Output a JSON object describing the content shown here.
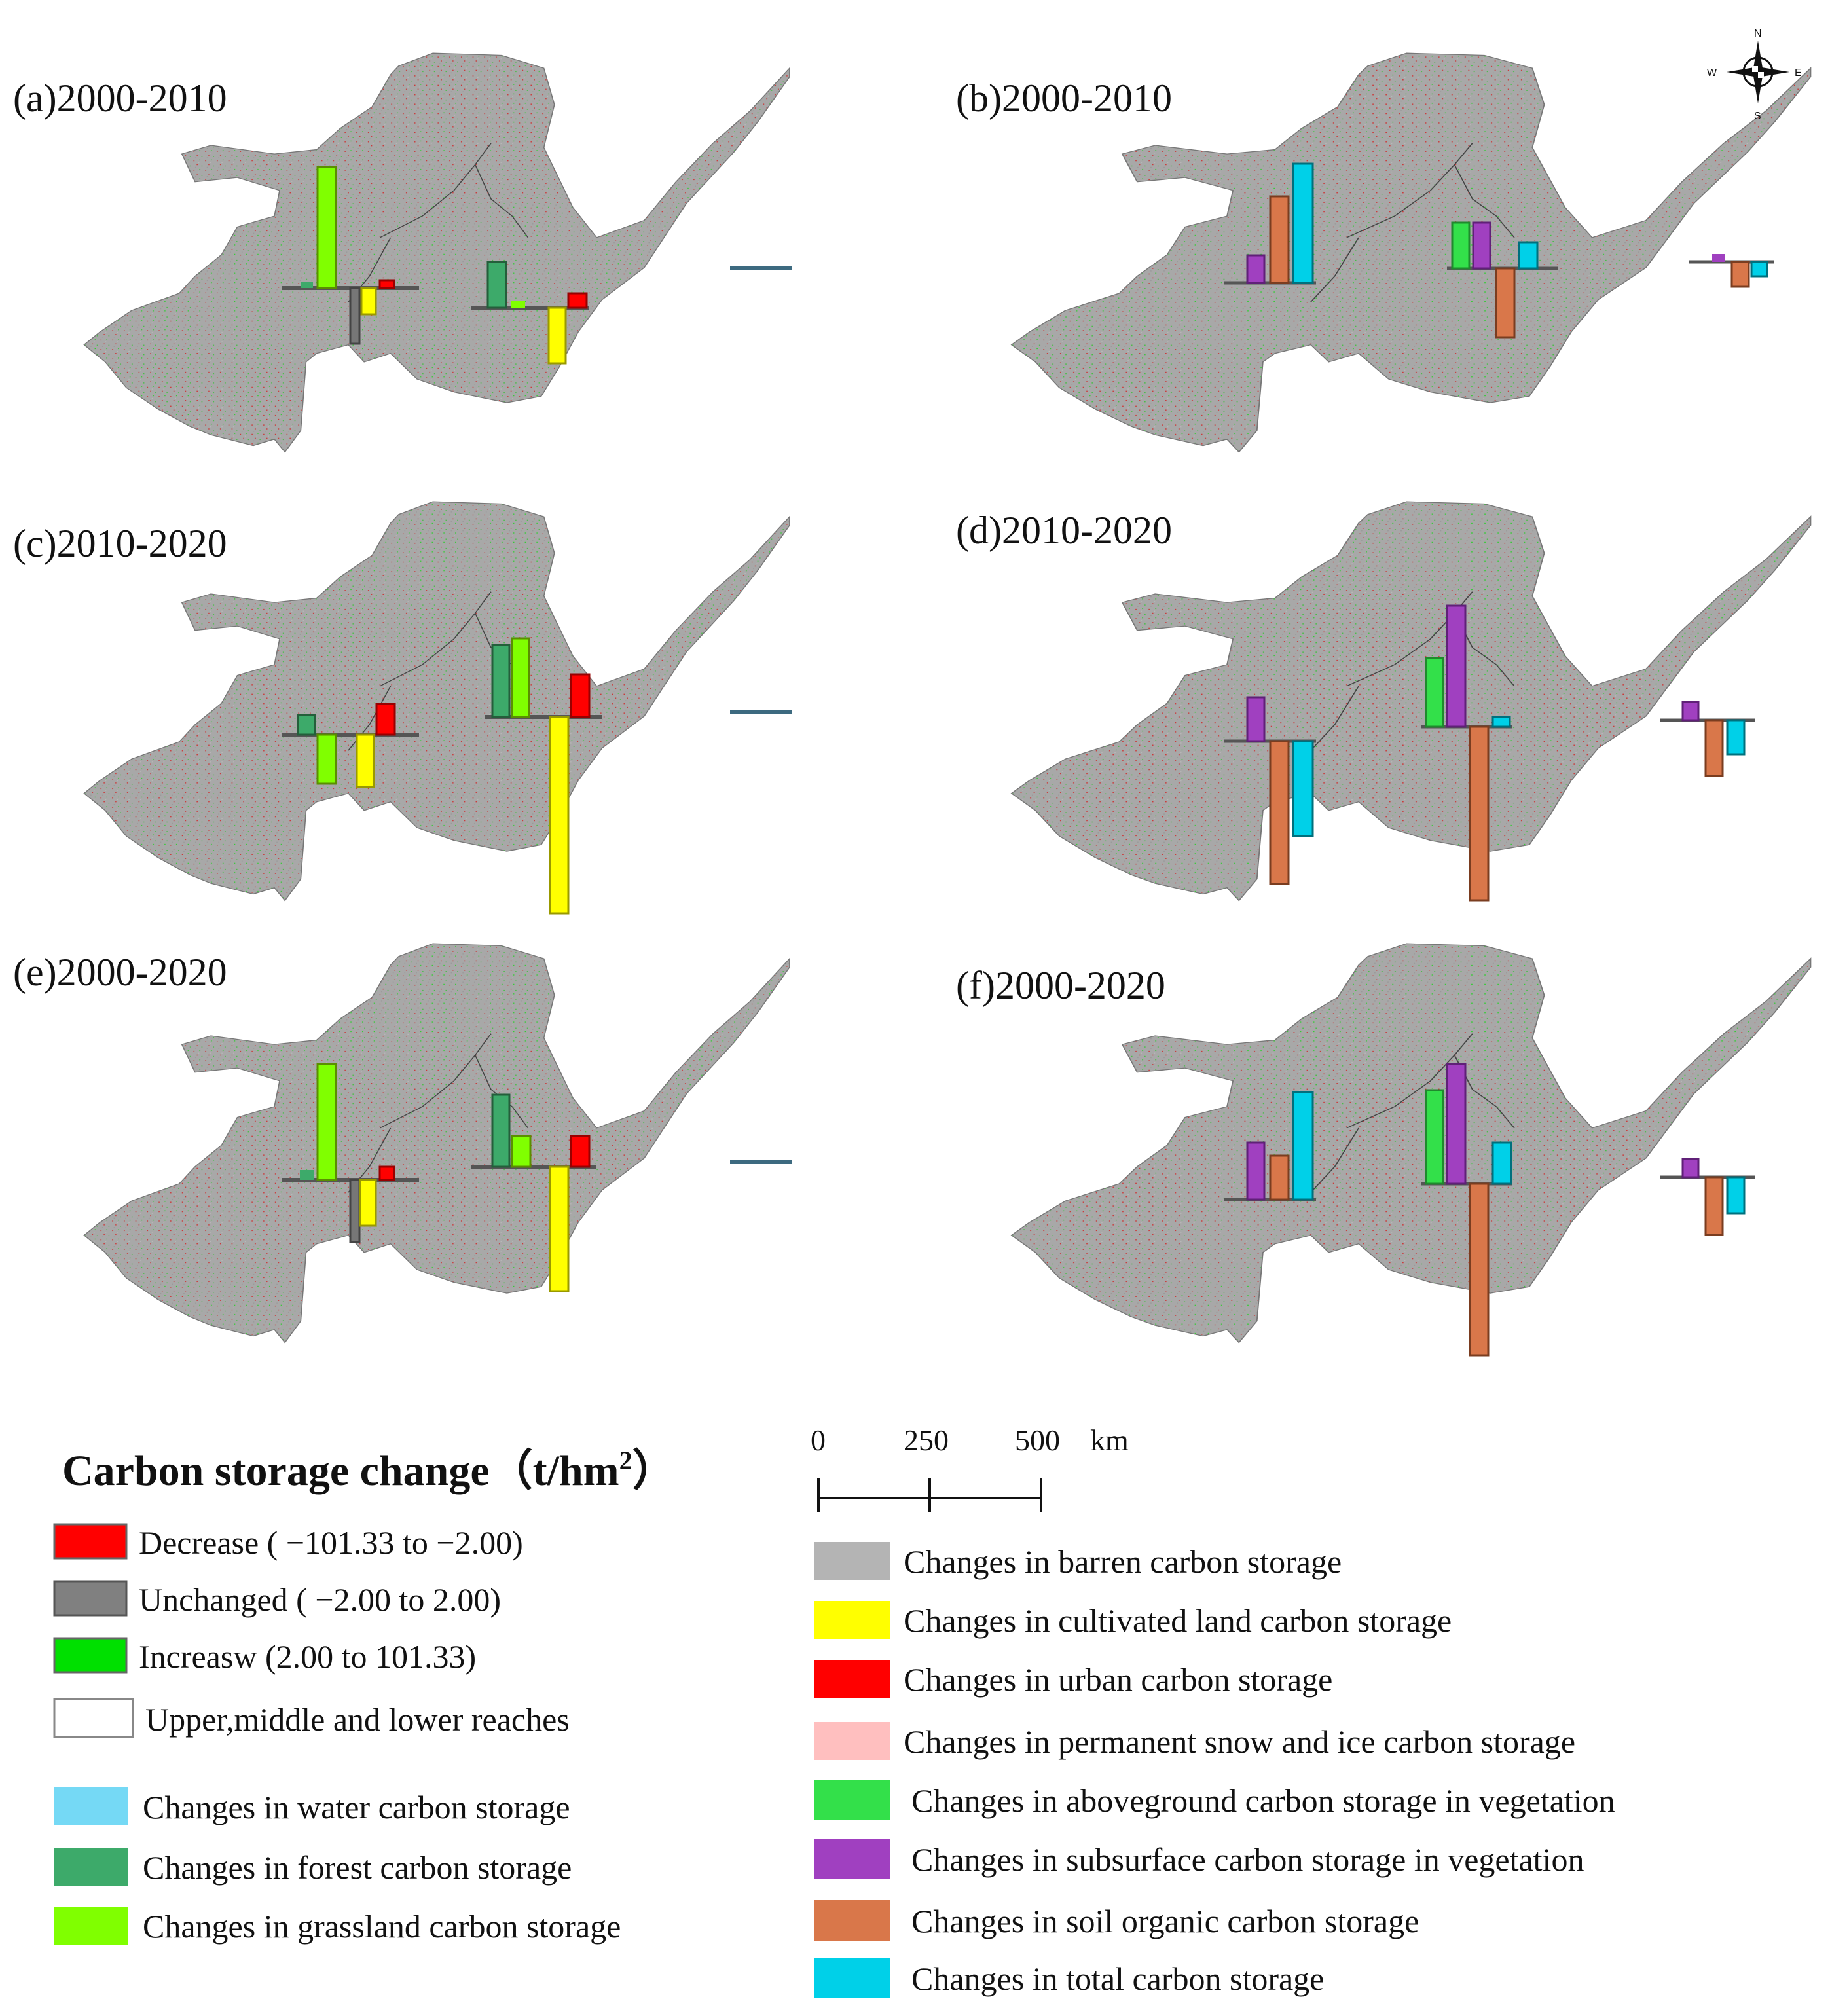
{
  "panels": [
    {
      "id": "a",
      "title": "(a)2000-2010"
    },
    {
      "id": "b",
      "title": "(b)2000-2010"
    },
    {
      "id": "c",
      "title": "(c)2010-2020"
    },
    {
      "id": "d",
      "title": "(d)2010-2020"
    },
    {
      "id": "e",
      "title": "(e)2000-2020"
    },
    {
      "id": "f",
      "title": "(f)2000-2020"
    }
  ],
  "compass": {
    "n": "N",
    "s": "S",
    "e": "E",
    "w": "W"
  },
  "legend": {
    "title": "Carbon storage change",
    "title_unit": "（t/hm",
    "title_sup": "2",
    "title_close": "）",
    "classes": [
      {
        "label": "Decrease ( −101.33 to −2.00)",
        "color": "#ff0000"
      },
      {
        "label": "Unchanged ( −2.00 to 2.00)",
        "color": "#808080"
      },
      {
        "label": "Increasw (2.00 to 101.33)",
        "color": "#00e000"
      },
      {
        "label": "Upper,middle and lower reaches",
        "color": "#ffffff"
      }
    ],
    "bars_left": [
      {
        "label": "Changes in water carbon storage",
        "color": "#75d9f5"
      },
      {
        "label": "Changes in forest carbon storage",
        "color": "#3daa6a"
      },
      {
        "label": "Changes in grassland carbon storage",
        "color": "#80ff00"
      }
    ],
    "bars_right": [
      {
        "label": "Changes in barren carbon storage",
        "color": "#b4b4b4"
      },
      {
        "label": "Changes in cultivated land carbon storage",
        "color": "#ffff00"
      },
      {
        "label": "Changes in urban carbon storage",
        "color": "#ff0000"
      },
      {
        "label": "Changes in permanent snow and ice carbon storage",
        "color": "#ffbfbf"
      },
      {
        "label": "Changes in aboveground  carbon storage in vegetation",
        "color": "#33e04a"
      },
      {
        "label": "Changes in subsurface  carbon storage in vegetation",
        "color": "#a040c0"
      },
      {
        "label": "Changes in soil organic  carbon storage",
        "color": "#d9774a"
      },
      {
        "label": "Changes in total  carbon storage",
        "color": "#00d0e8"
      }
    ]
  },
  "scale_bar": {
    "ticks": [
      "0",
      "250",
      "500"
    ],
    "unit": "km"
  }
}
